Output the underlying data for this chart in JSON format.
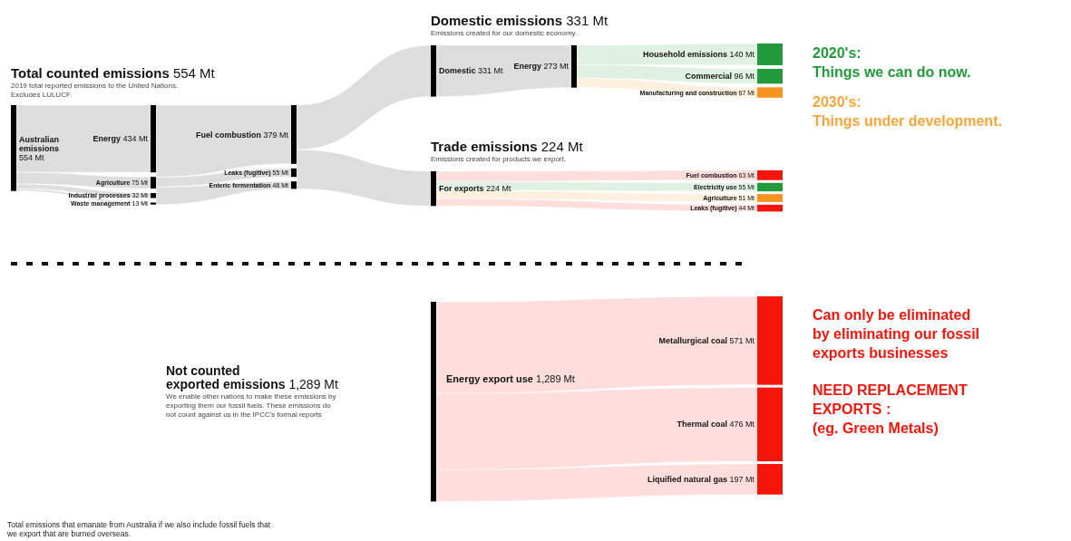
{
  "chart_data": [
    {
      "type": "other",
      "title": "Total counted emissions 554 Mt",
      "subtitle": "2019 total reported emissions to the United Nations.\nExcludes LULUCF.",
      "categories": [
        "Australian emissions"
      ],
      "values": [
        554
      ],
      "value_labels": [
        "554 Mt"
      ]
    },
    {
      "type": "other",
      "categories": [
        "Energy",
        "Agriculture",
        "Industrial processes",
        "Waste management"
      ],
      "values": [
        434,
        75,
        32,
        13
      ],
      "value_labels": [
        "434 Mt",
        "75 Mt",
        "32 Mt",
        "13 Mt"
      ]
    },
    {
      "type": "other",
      "categories": [
        "Fuel combustion",
        "Leaks (fugitive)",
        "Enteric fermentation"
      ],
      "values": [
        379,
        55,
        48
      ],
      "value_labels": [
        "379 Mt",
        "55 Mt",
        "48 Mt"
      ]
    },
    {
      "type": "other",
      "title": "Domestic emissions 331 Mt",
      "subtitle": "Emissions created for our domestic economy.",
      "categories": [
        "Domestic"
      ],
      "values": [
        331
      ],
      "value_labels": [
        "331 Mt"
      ]
    },
    {
      "type": "other",
      "categories": [
        "Energy"
      ],
      "values": [
        273
      ],
      "value_labels": [
        "273 Mt"
      ]
    },
    {
      "type": "other",
      "categories": [
        "Household emissions",
        "Commercial",
        "Manufacturing and construction"
      ],
      "values": [
        140,
        96,
        67
      ],
      "value_labels": [
        "140 Mt",
        "96 Mt",
        "67 Mt"
      ],
      "colors": [
        "#22993a",
        "#22993a",
        "#f7931e"
      ],
      "annotations": [
        "2020's:\nThings we can do now.",
        "2030's:\nThings under development."
      ]
    },
    {
      "type": "other",
      "title": "Trade emissions 224 Mt",
      "subtitle": "Emissions created for products we export.",
      "categories": [
        "For exports"
      ],
      "values": [
        224
      ],
      "value_labels": [
        "224 Mt"
      ]
    },
    {
      "type": "other",
      "categories": [
        "Fuel combustion",
        "Electricity use",
        "Agriculture",
        "Leaks (fugitive)"
      ],
      "values": [
        63,
        55,
        51,
        44
      ],
      "value_labels": [
        "63 Mt",
        "55 Mt",
        "51 Mt",
        "44 Mt"
      ],
      "colors": [
        "#f5150b",
        "#22993a",
        "#f7931e",
        "#f5150b"
      ]
    },
    {
      "type": "other",
      "title": "Not counted\nexported emissions 1,289 Mt",
      "subtitle": "We enable other nations to make these emissions by\nexporting them our fossil fuels. These emissions do\nnot count against us in the IPCC's formal reports",
      "categories": [
        "Energy export use"
      ],
      "values": [
        1289
      ],
      "value_labels": [
        "1,289 Mt"
      ],
      "annotations": [
        "Total emissions that emanate from Australia if we also include fossil fuels that\nwe export that are burned overseas."
      ]
    },
    {
      "type": "other",
      "categories": [
        "Metallurgical coal",
        "Thermal coal",
        "Liquified natural gas"
      ],
      "values": [
        571,
        476,
        197
      ],
      "value_labels": [
        "571 Mt",
        "476 Mt",
        "197 Mt"
      ],
      "colors": [
        "#f5150b",
        "#f5150b",
        "#f5150b"
      ],
      "annotations": [
        "Can only be eliminated\nby eliminating our fossil\nexports businesses",
        "NEED REPLACEMENT\nEXPORTS :\n(eg. Green Metals)"
      ]
    }
  ]
}
